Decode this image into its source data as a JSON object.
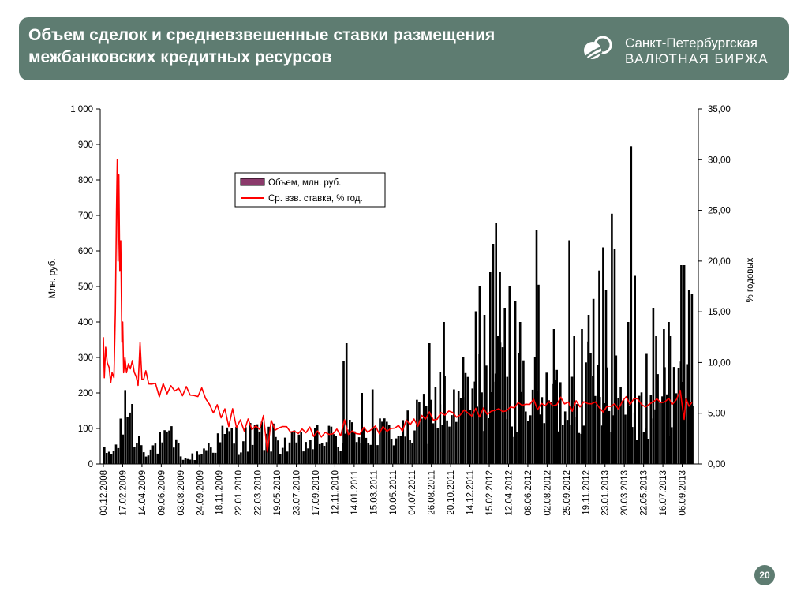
{
  "header": {
    "title": "Объем сделок и средневзвешенные ставки размещения межбанковских кредитных ресурсов",
    "logo_line1": "Санкт-Петербургская",
    "logo_line2": "ВАЛЮТНАЯ БИРЖА"
  },
  "page_number": "20",
  "colors": {
    "header_bg": "#5e7c71",
    "volume_bars": "#000000",
    "volume_legend_swatch": "#8b3a6b",
    "rate_line": "#ff0000"
  },
  "chart_data": {
    "type": "bar+line",
    "title": "",
    "ylabel_left": "Млн. руб.",
    "ylabel_right": "% годовых",
    "ylim_left": [
      0,
      1000
    ],
    "ylim_right": [
      0,
      35
    ],
    "y_ticks_left": [
      "0",
      "100",
      "200",
      "300",
      "400",
      "500",
      "600",
      "700",
      "800",
      "900",
      "1 000"
    ],
    "y_ticks_right": [
      "0,00",
      "5,00",
      "10,00",
      "15,00",
      "20,00",
      "25,00",
      "30,00",
      "35,00"
    ],
    "x_ticks": [
      "03.12.2008",
      "17.02.2009",
      "14.04.2009",
      "09.06.2009",
      "03.08.2009",
      "24.09.2009",
      "18.11.2009",
      "22.01.2010",
      "22.03.2010",
      "19.05.2010",
      "23.07.2010",
      "17.09.2010",
      "12.11.2010",
      "14.01.2011",
      "15.03.2011",
      "10.05.2011",
      "04.07.2011",
      "26.08.2011",
      "20.10.2011",
      "14.12.2011",
      "15.02.2012",
      "12.04.2012",
      "08.06.2012",
      "02.08.2012",
      "25.09.2012",
      "19.11.2012",
      "23.01.2013",
      "20.03.2013",
      "22.05.2013",
      "16.07.2013",
      "06.09.2013"
    ],
    "grid": false,
    "legend_position": "top-center",
    "series": [
      {
        "name": "Объем, млн. руб.",
        "kind": "bar",
        "axis": "left",
        "envelope": [
          [
            0,
            45
          ],
          [
            0.5,
            50
          ],
          [
            0.8,
            110
          ],
          [
            1.0,
            150
          ],
          [
            1.1,
            380
          ],
          [
            1.2,
            260
          ],
          [
            1.4,
            200
          ],
          [
            1.6,
            110
          ],
          [
            1.8,
            100
          ],
          [
            2.0,
            80
          ],
          [
            2.4,
            60
          ],
          [
            3.0,
            90
          ],
          [
            3.5,
            100
          ],
          [
            4.0,
            45
          ],
          [
            4.2,
            20
          ],
          [
            4.6,
            30
          ],
          [
            5.0,
            50
          ],
          [
            5.5,
            80
          ],
          [
            6.0,
            100
          ],
          [
            6.5,
            120
          ],
          [
            7.0,
            100
          ],
          [
            7.5,
            110
          ],
          [
            8.0,
            120
          ],
          [
            8.5,
            110
          ],
          [
            9.0,
            100
          ],
          [
            9.5,
            80
          ],
          [
            10.0,
            90
          ],
          [
            10.5,
            80
          ],
          [
            11.0,
            100
          ],
          [
            11.5,
            110
          ],
          [
            12.0,
            100
          ],
          [
            12.5,
            110
          ],
          [
            13.0,
            140
          ],
          [
            13.5,
            150
          ],
          [
            14.0,
            120
          ],
          [
            14.5,
            130
          ],
          [
            15.0,
            140
          ],
          [
            15.5,
            130
          ],
          [
            16.0,
            150
          ],
          [
            16.5,
            190
          ],
          [
            17.0,
            220
          ],
          [
            17.5,
            260
          ],
          [
            18.0,
            200
          ],
          [
            18.5,
            250
          ],
          [
            19.0,
            270
          ],
          [
            19.5,
            300
          ],
          [
            20.0,
            330
          ],
          [
            20.5,
            350
          ],
          [
            21.0,
            290
          ],
          [
            21.5,
            310
          ],
          [
            22.0,
            320
          ],
          [
            22.5,
            250
          ],
          [
            23.0,
            260
          ],
          [
            23.5,
            250
          ],
          [
            24.0,
            280
          ],
          [
            24.5,
            300
          ],
          [
            25.0,
            320
          ],
          [
            25.5,
            330
          ],
          [
            26.0,
            350
          ],
          [
            26.5,
            340
          ],
          [
            27.0,
            290
          ],
          [
            27.5,
            250
          ],
          [
            28.0,
            230
          ],
          [
            28.5,
            260
          ],
          [
            29.0,
            250
          ],
          [
            29.5,
            330
          ],
          [
            30.0,
            300
          ],
          [
            30.5,
            350
          ]
        ],
        "spikes": [
          [
            12.4,
            290
          ],
          [
            12.55,
            340
          ],
          [
            13.35,
            200
          ],
          [
            13.9,
            210
          ],
          [
            16.85,
            340
          ],
          [
            17.4,
            260
          ],
          [
            17.6,
            400
          ],
          [
            18.6,
            300
          ],
          [
            19.25,
            430
          ],
          [
            19.45,
            500
          ],
          [
            19.7,
            420
          ],
          [
            20.0,
            540
          ],
          [
            20.15,
            620
          ],
          [
            20.3,
            680
          ],
          [
            20.5,
            540
          ],
          [
            20.75,
            440
          ],
          [
            21.0,
            500
          ],
          [
            21.3,
            460
          ],
          [
            21.55,
            400
          ],
          [
            22.4,
            660
          ],
          [
            22.5,
            505
          ],
          [
            23.3,
            380
          ],
          [
            23.45,
            265
          ],
          [
            24.1,
            630
          ],
          [
            24.35,
            360
          ],
          [
            24.75,
            380
          ],
          [
            25.1,
            420
          ],
          [
            25.35,
            465
          ],
          [
            25.65,
            545
          ],
          [
            25.85,
            610
          ],
          [
            26.0,
            490
          ],
          [
            26.3,
            705
          ],
          [
            26.45,
            605
          ],
          [
            26.9,
            180
          ],
          [
            27.15,
            400
          ],
          [
            27.3,
            895
          ],
          [
            27.5,
            530
          ],
          [
            28.1,
            310
          ],
          [
            28.45,
            440
          ],
          [
            28.6,
            360
          ],
          [
            29.0,
            380
          ],
          [
            29.25,
            400
          ],
          [
            29.35,
            360
          ],
          [
            29.9,
            560
          ],
          [
            30.05,
            560
          ],
          [
            30.3,
            490
          ],
          [
            30.45,
            480
          ]
        ]
      },
      {
        "name": "Ср. взв. ставка, % год.",
        "kind": "line",
        "axis": "right",
        "values": [
          [
            0,
            12.5
          ],
          [
            0.05,
            8.5
          ],
          [
            0.12,
            11.5
          ],
          [
            0.2,
            10.0
          ],
          [
            0.3,
            9.5
          ],
          [
            0.38,
            8.0
          ],
          [
            0.45,
            9.0
          ],
          [
            0.55,
            8.5
          ],
          [
            0.62,
            15.0
          ],
          [
            0.68,
            25.0
          ],
          [
            0.72,
            30.0
          ],
          [
            0.76,
            20.0
          ],
          [
            0.8,
            28.5
          ],
          [
            0.85,
            19.0
          ],
          [
            0.9,
            22.0
          ],
          [
            0.96,
            12.0
          ],
          [
            1.0,
            14.0
          ],
          [
            1.05,
            9.0
          ],
          [
            1.12,
            10.5
          ],
          [
            1.2,
            9.0
          ],
          [
            1.3,
            10.0
          ],
          [
            1.4,
            9.0
          ],
          [
            1.5,
            10.5
          ],
          [
            1.6,
            9.0
          ],
          [
            1.7,
            8.5
          ],
          [
            1.8,
            8.0
          ],
          [
            1.9,
            12.0
          ],
          [
            2.0,
            8.5
          ],
          [
            2.1,
            8.0
          ],
          [
            2.2,
            9.5
          ],
          [
            2.35,
            8.0
          ],
          [
            2.5,
            7.5
          ],
          [
            2.7,
            8.0
          ],
          [
            2.9,
            7.0
          ],
          [
            3.1,
            7.5
          ],
          [
            3.3,
            7.0
          ],
          [
            3.5,
            7.5
          ],
          [
            3.7,
            7.0
          ],
          [
            3.9,
            7.2
          ],
          [
            4.1,
            7.0
          ],
          [
            4.3,
            7.3
          ],
          [
            4.5,
            7.0
          ],
          [
            4.7,
            7.2
          ],
          [
            4.9,
            7.0
          ],
          [
            5.1,
            7.5
          ],
          [
            5.3,
            6.5
          ],
          [
            5.5,
            6.0
          ],
          [
            5.7,
            5.0
          ],
          [
            5.9,
            5.5
          ],
          [
            6.1,
            4.5
          ],
          [
            6.3,
            5.0
          ],
          [
            6.5,
            4.0
          ],
          [
            6.7,
            5.5
          ],
          [
            6.9,
            4.0
          ],
          [
            7.1,
            4.0
          ],
          [
            7.3,
            3.5
          ],
          [
            7.5,
            4.5
          ],
          [
            7.7,
            3.5
          ],
          [
            7.9,
            4.0
          ],
          [
            8.1,
            3.5
          ],
          [
            8.3,
            4.5
          ],
          [
            8.5,
            1.5
          ],
          [
            8.7,
            4.0
          ],
          [
            8.9,
            3.2
          ],
          [
            9.1,
            3.8
          ],
          [
            9.3,
            3.5
          ],
          [
            9.5,
            3.8
          ],
          [
            9.7,
            3.2
          ],
          [
            9.9,
            3.6
          ],
          [
            10.1,
            3.0
          ],
          [
            10.3,
            3.5
          ],
          [
            10.5,
            2.8
          ],
          [
            10.7,
            3.2
          ],
          [
            10.9,
            2.5
          ],
          [
            11.1,
            3.0
          ],
          [
            11.3,
            2.8
          ],
          [
            11.5,
            3.0
          ],
          [
            11.7,
            3.2
          ],
          [
            11.9,
            3.0
          ],
          [
            12.1,
            3.5
          ],
          [
            12.3,
            3.2
          ],
          [
            12.5,
            4.0
          ],
          [
            12.7,
            3.0
          ],
          [
            12.9,
            3.5
          ],
          [
            13.1,
            2.8
          ],
          [
            13.3,
            3.0
          ],
          [
            13.5,
            3.2
          ],
          [
            13.7,
            3.4
          ],
          [
            13.9,
            3.2
          ],
          [
            14.1,
            3.5
          ],
          [
            14.3,
            3.3
          ],
          [
            14.5,
            3.6
          ],
          [
            14.7,
            3.4
          ],
          [
            14.9,
            3.8
          ],
          [
            15.1,
            3.5
          ],
          [
            15.3,
            3.8
          ],
          [
            15.5,
            3.6
          ],
          [
            15.7,
            4.0
          ],
          [
            15.9,
            3.8
          ],
          [
            16.1,
            4.3
          ],
          [
            16.3,
            4.0
          ],
          [
            16.5,
            4.5
          ],
          [
            16.7,
            4.2
          ],
          [
            16.9,
            4.8
          ],
          [
            17.1,
            4.5
          ],
          [
            17.3,
            4.6
          ],
          [
            17.5,
            4.8
          ],
          [
            17.7,
            5.0
          ],
          [
            17.9,
            4.9
          ],
          [
            18.1,
            5.0
          ],
          [
            18.3,
            4.8
          ],
          [
            18.5,
            5.2
          ],
          [
            18.7,
            4.9
          ],
          [
            18.9,
            5.1
          ],
          [
            19.1,
            5.0
          ],
          [
            19.3,
            5.3
          ],
          [
            19.5,
            5.0
          ],
          [
            19.7,
            5.4
          ],
          [
            19.9,
            5.3
          ],
          [
            20.1,
            5.5
          ],
          [
            20.3,
            5.6
          ],
          [
            20.5,
            5.4
          ],
          [
            20.7,
            5.6
          ],
          [
            20.9,
            5.4
          ],
          [
            21.1,
            5.8
          ],
          [
            21.3,
            5.6
          ],
          [
            21.5,
            6.0
          ],
          [
            21.7,
            5.8
          ],
          [
            21.9,
            5.6
          ],
          [
            22.1,
            5.8
          ],
          [
            22.3,
            6.0
          ],
          [
            22.5,
            5.7
          ],
          [
            22.7,
            5.9
          ],
          [
            22.9,
            6.2
          ],
          [
            23.1,
            6.0
          ],
          [
            23.3,
            5.8
          ],
          [
            23.5,
            6.0
          ],
          [
            23.7,
            6.5
          ],
          [
            23.9,
            6.2
          ],
          [
            24.1,
            6.0
          ],
          [
            24.3,
            5.6
          ],
          [
            24.5,
            5.8
          ],
          [
            24.7,
            5.9
          ],
          [
            24.9,
            6.3
          ],
          [
            25.1,
            6.4
          ],
          [
            25.3,
            6.2
          ],
          [
            25.5,
            6.5
          ],
          [
            25.7,
            6.0
          ],
          [
            25.9,
            5.4
          ],
          [
            26.1,
            5.3
          ],
          [
            26.3,
            5.5
          ],
          [
            26.5,
            5.6
          ],
          [
            26.7,
            5.8
          ],
          [
            26.9,
            6.0
          ],
          [
            27.1,
            6.2
          ],
          [
            27.3,
            5.9
          ],
          [
            27.5,
            6.1
          ],
          [
            27.7,
            6.0
          ],
          [
            27.9,
            6.2
          ],
          [
            28.1,
            6.0
          ],
          [
            28.3,
            6.1
          ],
          [
            28.5,
            6.3
          ],
          [
            28.7,
            6.0
          ],
          [
            28.9,
            6.2
          ],
          [
            29.1,
            6.0
          ],
          [
            29.3,
            6.3
          ],
          [
            29.5,
            6.0
          ],
          [
            29.7,
            6.4
          ],
          [
            29.9,
            7.3
          ],
          [
            30.0,
            6.2
          ],
          [
            30.1,
            4.8
          ],
          [
            30.2,
            6.8
          ],
          [
            30.35,
            6.0
          ],
          [
            30.5,
            6.5
          ]
        ]
      }
    ]
  }
}
